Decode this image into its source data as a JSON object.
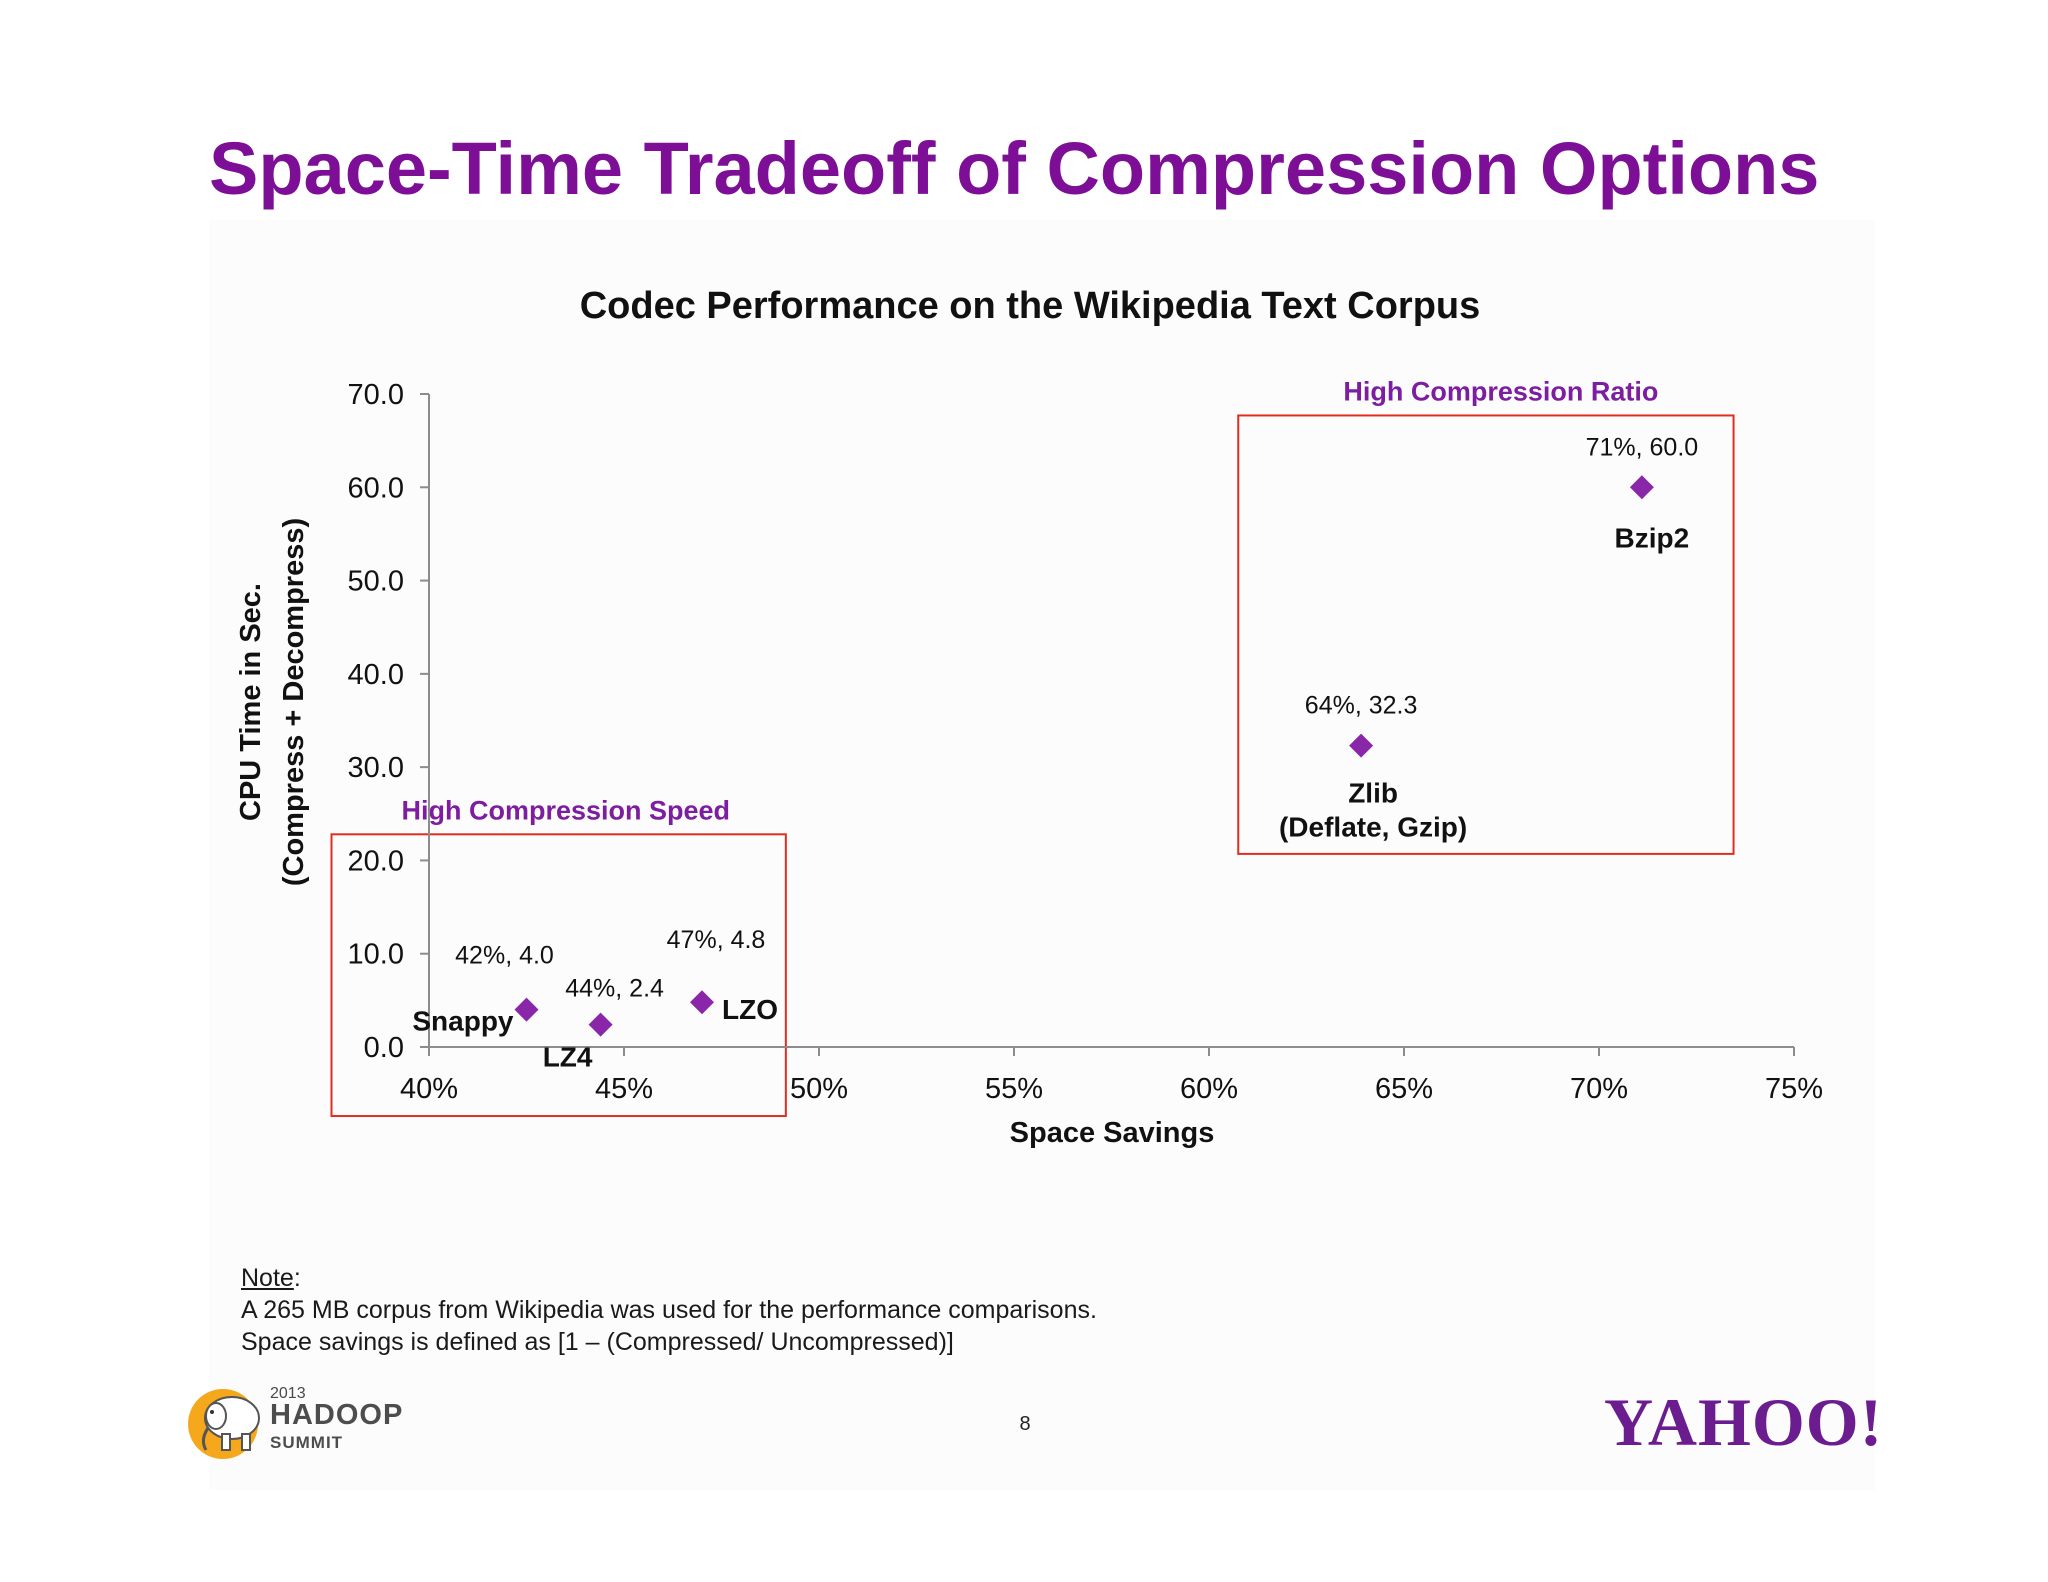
{
  "slide": {
    "title": "Space-Time Tradeoff of Compression Options",
    "page_number": "8"
  },
  "note": {
    "label": "Note",
    "line1": "A 265 MB corpus from Wikipedia was used for the performance comparisons.",
    "line2": "Space savings is defined as [1 – (Compressed/ Uncompressed)]"
  },
  "logos": {
    "hadoop": {
      "year": "2013",
      "word1": "HADOOP",
      "word2": "SUMMIT"
    },
    "yahoo": "YAHOO!"
  },
  "colors": {
    "title": "#7d0e96",
    "marker": "#8a27a8",
    "region_label": "#7d1da0",
    "region_box": "#e02d20",
    "axis": "#8c8c8c",
    "hadoop_circle": "#f5a81c",
    "yahoo": "#6b1d8f"
  },
  "chart_data": {
    "type": "scatter",
    "title": "Codec Performance on the Wikipedia Text Corpus",
    "xlabel": "Space Savings",
    "ylabel": [
      "CPU Time in Sec.",
      "(Compress + Decompress)"
    ],
    "xlim": [
      0.4,
      0.75
    ],
    "ylim": [
      0,
      70
    ],
    "x_ticks": [
      0.4,
      0.45,
      0.5,
      0.55,
      0.6,
      0.65,
      0.7,
      0.75
    ],
    "x_tick_labels": [
      "40%",
      "45%",
      "50%",
      "55%",
      "60%",
      "65%",
      "70%",
      "75%"
    ],
    "y_ticks": [
      0,
      10,
      20,
      30,
      40,
      50,
      60,
      70
    ],
    "y_tick_labels": [
      "0.0",
      "10.0",
      "20.0",
      "30.0",
      "40.0",
      "50.0",
      "60.0",
      "70.0"
    ],
    "grid": false,
    "legend": "none",
    "points": [
      {
        "name": "Snappy",
        "label": "Snappy",
        "x": 0.425,
        "y": 4.0,
        "value_label": "42%, 4.0"
      },
      {
        "name": "LZ4",
        "label": "LZ4",
        "x": 0.444,
        "y": 2.4,
        "value_label": "44%, 2.4"
      },
      {
        "name": "LZO",
        "label": "LZO",
        "x": 0.47,
        "y": 4.8,
        "value_label": "47%, 4.8"
      },
      {
        "name": "Zlib",
        "label": "Zlib\n(Deflate, Gzip)",
        "x": 0.639,
        "y": 32.3,
        "value_label": "64%, 32.3"
      },
      {
        "name": "Bzip2",
        "label": "Bzip2",
        "x": 0.711,
        "y": 60.0,
        "value_label": "71%, 60.0"
      }
    ],
    "annotations": [
      {
        "text": "High Compression Speed",
        "x_range": [
          0.375,
          0.4915
        ],
        "y_range": [
          -7.4,
          22.8
        ]
      },
      {
        "text": "High Compression Ratio",
        "x_range": [
          0.6075,
          0.7345
        ],
        "y_range": [
          20.7,
          67.7
        ]
      }
    ]
  }
}
